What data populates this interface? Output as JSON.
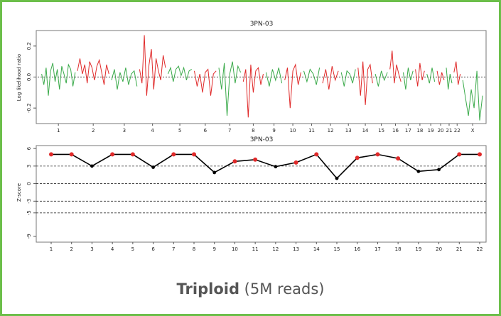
{
  "chart_data": [
    {
      "type": "line",
      "title": "3PN-03",
      "ylabel": "Log likelihood ratio",
      "xlabel": "",
      "ylim": [
        -0.3,
        0.3
      ],
      "yticks": [
        0.2,
        0.0,
        -0.2
      ],
      "ytick_labels": [
        "0.2",
        "0.0",
        "-0.2"
      ],
      "chromosomes": [
        "1",
        "2",
        "3",
        "4",
        "5",
        "6",
        "7",
        "8",
        "9",
        "10",
        "11",
        "12",
        "13",
        "14",
        "15",
        "16",
        "17",
        "18",
        "19",
        "20",
        "21",
        "22",
        "X"
      ],
      "chromosome_colors": [
        "#3aaa4a",
        "#e02a2a"
      ],
      "series": [
        {
          "values": [
            0.02,
            -0.05,
            0.06,
            -0.12,
            0.04,
            0.09,
            -0.03,
            0.05,
            -0.08,
            0.07,
            0.02,
            -0.04,
            0.08,
            0.05,
            -0.06,
            0.03
          ]
        },
        {
          "values": [
            0.04,
            0.12,
            0.02,
            0.08,
            -0.04,
            0.1,
            0.06,
            -0.02,
            0.07,
            0.11,
            0.03,
            -0.05,
            0.08,
            0.02
          ]
        },
        {
          "values": [
            -0.02,
            0.05,
            -0.08,
            0.03,
            -0.03,
            0.06,
            -0.05,
            0.02,
            0.04,
            -0.06
          ]
        },
        {
          "values": [
            0.05,
            -0.04,
            0.27,
            -0.12,
            0.08,
            0.18,
            -0.08,
            0.12,
            0.04,
            -0.02,
            0.14,
            0.06
          ]
        },
        {
          "values": [
            0.02,
            0.06,
            -0.03,
            0.05,
            0.07,
            0.01,
            0.06,
            -0.02,
            0.04,
            0.05
          ]
        },
        {
          "values": [
            0.04,
            -0.06,
            0.02,
            -0.1,
            0.03,
            0.05,
            -0.12,
            0.02,
            0.04
          ]
        },
        {
          "values": [
            0.06,
            -0.08,
            0.09,
            -0.25,
            0.02,
            0.1,
            -0.04,
            0.07,
            0.03
          ]
        },
        {
          "values": [
            -0.03,
            0.05,
            -0.26,
            0.08,
            -0.1,
            0.04,
            0.06,
            -0.05,
            0.02
          ]
        },
        {
          "values": [
            0.03,
            -0.06,
            0.05,
            -0.02,
            0.06,
            -0.04
          ]
        },
        {
          "values": [
            -0.02,
            0.06,
            -0.2,
            0.04,
            0.08,
            -0.05,
            0.03
          ]
        },
        {
          "values": [
            0.04,
            -0.03,
            0.05,
            0.02,
            -0.05,
            0.06
          ]
        },
        {
          "values": [
            -0.04,
            0.05,
            -0.08,
            0.07,
            -0.02,
            0.04
          ]
        },
        {
          "values": [
            0.03,
            -0.06,
            0.04,
            0.02,
            -0.04,
            0.05
          ]
        },
        {
          "values": [
            0.06,
            -0.12,
            0.1,
            -0.18,
            0.05,
            0.08,
            -0.04
          ]
        },
        {
          "values": [
            0.02,
            -0.06,
            0.04,
            -0.02,
            0.03
          ]
        },
        {
          "values": [
            0.05,
            0.17,
            -0.04,
            0.08,
            0.02,
            -0.03
          ]
        },
        {
          "values": [
            0.03,
            -0.08,
            0.06,
            -0.02,
            0.04
          ]
        },
        {
          "values": [
            0.05,
            -0.06,
            0.09,
            -0.02,
            0.04
          ]
        },
        {
          "values": [
            0.02,
            -0.04,
            0.06,
            -0.03
          ]
        },
        {
          "values": [
            0.04,
            -0.05,
            0.03,
            -0.02
          ]
        },
        {
          "values": [
            0.06,
            -0.08,
            0.02,
            -0.04
          ]
        },
        {
          "values": [
            0.03,
            0.1,
            -0.05,
            0.02
          ]
        },
        {
          "values": [
            -0.02,
            -0.14,
            -0.25,
            -0.08,
            -0.2,
            0.04,
            -0.28,
            -0.12
          ]
        }
      ]
    },
    {
      "type": "line",
      "title": "3PN-03",
      "ylabel": "Z-score",
      "xlabel": "",
      "ylim": [
        -10,
        6.5
      ],
      "yticks": [
        6,
        3,
        0,
        -3,
        -5,
        -9
      ],
      "ytick_labels": [
        "6",
        "3",
        "0",
        "-3",
        "-5",
        "-9"
      ],
      "dashed_lines": [
        3,
        0,
        -3,
        -5
      ],
      "categories": [
        "1",
        "2",
        "3",
        "4",
        "5",
        "6",
        "7",
        "8",
        "9",
        "10",
        "11",
        "12",
        "13",
        "14",
        "15",
        "16",
        "17",
        "18",
        "19",
        "20",
        "21",
        "22"
      ],
      "values": [
        5,
        5,
        3,
        5,
        5,
        2.8,
        5,
        5,
        1.9,
        3.8,
        4.1,
        2.9,
        3.6,
        5,
        0.9,
        4.4,
        5,
        4.3,
        2.1,
        2.4,
        5,
        5
      ],
      "red_markers": [
        "1",
        "2",
        "4",
        "5",
        "7",
        "8",
        "10",
        "11",
        "13",
        "14",
        "16",
        "17",
        "18",
        "21",
        "22"
      ],
      "line_color": "#000000",
      "marker_red": "#e02a2a",
      "marker_black": "#000000"
    }
  ],
  "caption": {
    "bold": "Triploid",
    "rest": " (5M reads)"
  }
}
